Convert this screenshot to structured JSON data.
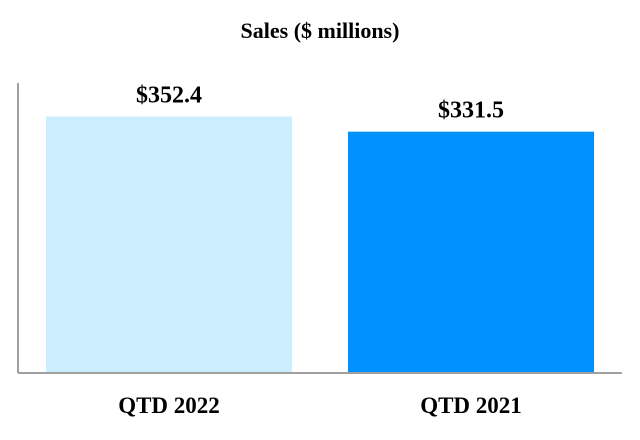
{
  "chart_data": {
    "type": "bar",
    "title": "Sales ($ millions)",
    "categories": [
      "QTD 2022",
      "QTD 2021"
    ],
    "values": [
      352.4,
      331.5
    ],
    "data_labels": [
      "$352.4",
      "$331.5"
    ],
    "colors": [
      "#CDEEFE",
      "#0091FF"
    ],
    "axis_color": "#A0A0A0",
    "xlabel": "",
    "ylabel": "",
    "ylim": [
      0,
      400
    ],
    "grid": false,
    "legend": "none"
  }
}
